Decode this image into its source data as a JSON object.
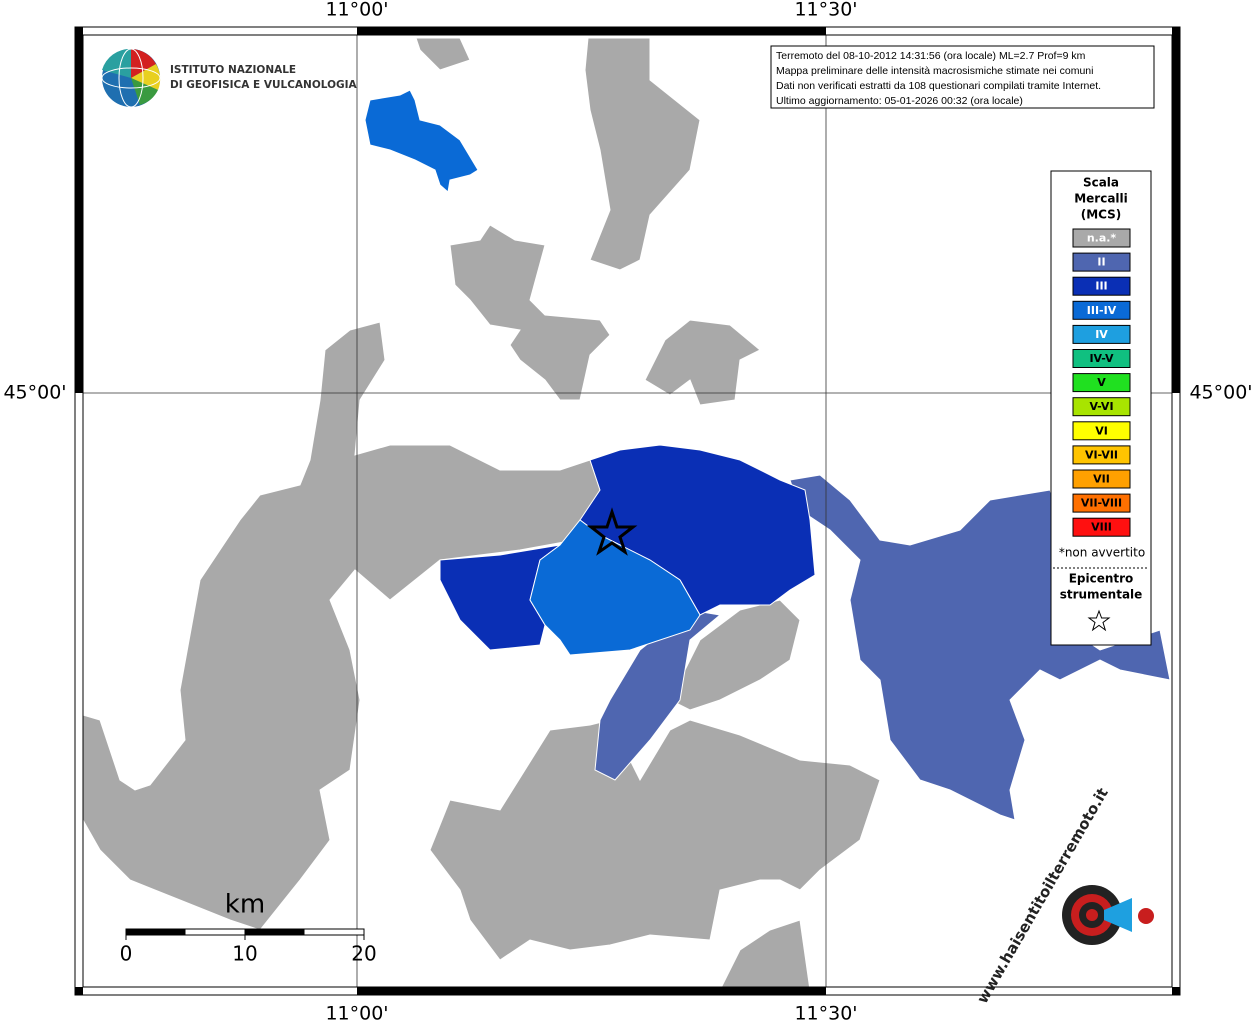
{
  "graticule": {
    "lon_left": "11°00'",
    "lon_right": "11°30'",
    "lat": "45°00'"
  },
  "institute": {
    "line1": "ISTITUTO NAZIONALE",
    "line2": "DI GEOFISICA E VULCANOLOGIA"
  },
  "info": [
    "Terremoto del 08-10-2012 14:31:56 (ora locale) ML=2.7 Prof=9 km",
    "Mappa preliminare delle intensità macrosismiche stimate nei comuni",
    "Dati non verificati estratti da 108 questionari compilati tramite Internet.",
    "Ultimo aggiornamento: 05-01-2026 00:32 (ora locale)"
  ],
  "legend": {
    "title": [
      "Scala",
      "Mercalli",
      "(MCS)"
    ],
    "items": [
      {
        "label": "n.a.*",
        "color": "#a9a9a9",
        "text_color": "#ffffff"
      },
      {
        "label": "II",
        "color": "#4f66b0",
        "text_color": "#ffffff"
      },
      {
        "label": "III",
        "color": "#0a2fb5",
        "text_color": "#ffffff"
      },
      {
        "label": "III-IV",
        "color": "#0a6ad6",
        "text_color": "#ffffff"
      },
      {
        "label": "IV",
        "color": "#1e9fe0",
        "text_color": "#ffffff"
      },
      {
        "label": "IV-V",
        "color": "#10c080",
        "text_color": "#000000"
      },
      {
        "label": "V",
        "color": "#20e020",
        "text_color": "#000000"
      },
      {
        "label": "V-VI",
        "color": "#a8e400",
        "text_color": "#000000"
      },
      {
        "label": "VI",
        "color": "#ffff00",
        "text_color": "#000000"
      },
      {
        "label": "VI-VII",
        "color": "#ffc400",
        "text_color": "#000000"
      },
      {
        "label": "VII",
        "color": "#ffa000",
        "text_color": "#000000"
      },
      {
        "label": "VII-VIII",
        "color": "#ff7000",
        "text_color": "#000000"
      },
      {
        "label": "VIII",
        "color": "#ff1010",
        "text_color": "#000000"
      }
    ],
    "note": "*non avvertito",
    "epicenter": [
      "Epicentro",
      "strumentale"
    ]
  },
  "scale": {
    "unit": "km",
    "ticks": [
      0,
      10,
      20
    ]
  },
  "logo_url": "www.haisentitoilterremoto.it"
}
